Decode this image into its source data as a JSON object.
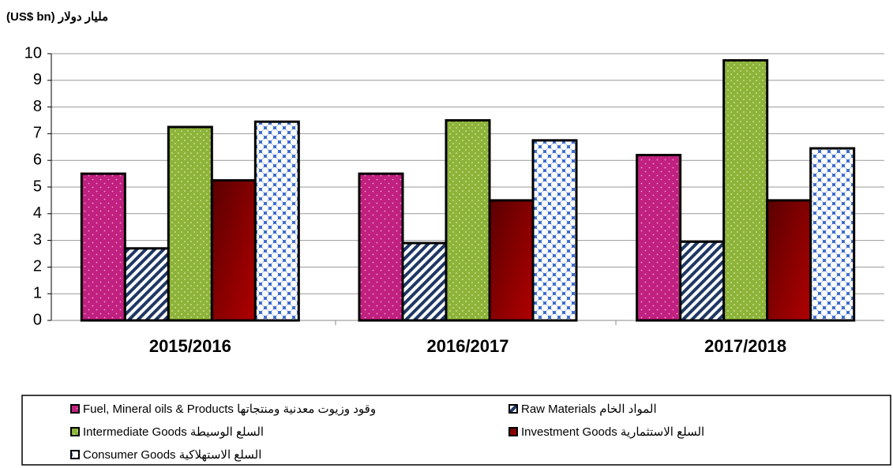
{
  "chart_data": {
    "type": "bar",
    "title": "(US$ bn) مليار دولار",
    "categories": [
      "2015/2016",
      "2016/2017",
      "2017/2018"
    ],
    "series": [
      {
        "name": "Fuel, Mineral oils & Products وقود وزيوت معدنية ومنتجاتها",
        "color": "#c0207f",
        "values": [
          5.5,
          5.5,
          6.2
        ]
      },
      {
        "name": "Raw Materials المواد الخام",
        "color": "#1f3864",
        "values": [
          2.7,
          2.9,
          2.95
        ]
      },
      {
        "name": "Intermediate Goods السلع الوسيطة",
        "color": "#8db33a",
        "values": [
          7.25,
          7.5,
          9.75
        ]
      },
      {
        "name": "Investment Goods السلع الاستثمارية",
        "color": "#b00000",
        "values": [
          5.25,
          4.5,
          4.5
        ]
      },
      {
        "name": "Consumer Goods السلع الاستهلاكية",
        "color": "#3366cc",
        "values": [
          7.45,
          6.75,
          6.45
        ]
      }
    ],
    "ylim": [
      0,
      10
    ],
    "yticks": [
      0,
      1,
      2,
      3,
      4,
      5,
      6,
      7,
      8,
      9,
      10
    ],
    "grid": true
  }
}
